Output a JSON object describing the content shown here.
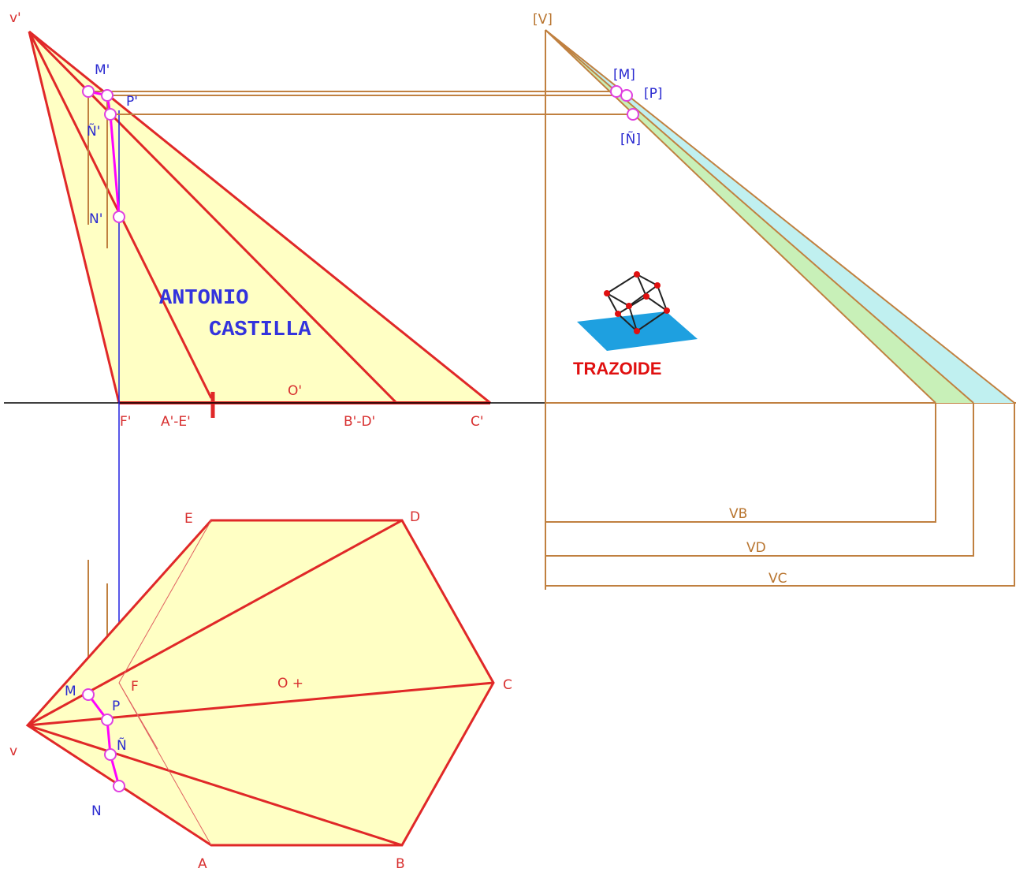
{
  "elevation": {
    "vertex": "v'",
    "m": "M'",
    "p": "P'",
    "n_tilde": "Ñ'",
    "n": "N'",
    "f": "F'",
    "ae": "A'-E'",
    "bd": "B'-D'",
    "c": "C'",
    "o": "O'"
  },
  "true_length": {
    "vertex": "[V]",
    "m": "[M]",
    "p": "[P]",
    "n_tilde": "[Ñ]",
    "vb": "VB",
    "vd": "VD",
    "vc": "VC"
  },
  "plan": {
    "vertex": "v",
    "a": "A",
    "b": "B",
    "c": "C",
    "d": "D",
    "e": "E",
    "f": "F",
    "o": "O +",
    "m": "M",
    "p": "P",
    "n_tilde": "Ñ",
    "n": "N"
  },
  "credits": {
    "author_first": "ANTONIO",
    "author_last": "CASTILLA",
    "logo": "TRAZOIDE"
  }
}
